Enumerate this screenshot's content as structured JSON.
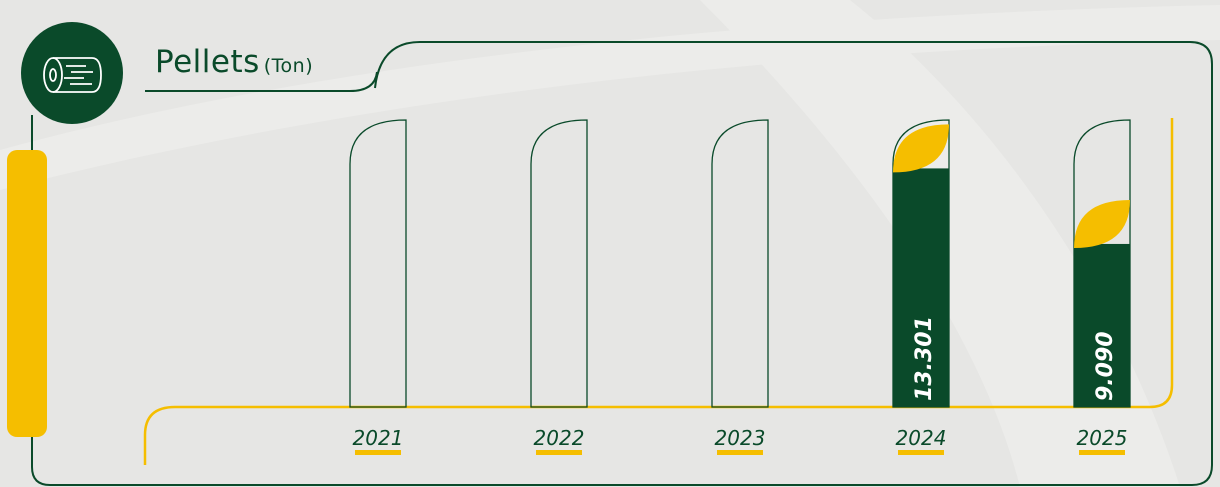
{
  "colors": {
    "green": "#0a4a2a",
    "yellow": "#f5be00",
    "background": "#e6e6e4"
  },
  "header": {
    "icon": "wood-log-icon",
    "title": "Pellets",
    "unit": "(Ton)"
  },
  "chart_data": {
    "type": "bar",
    "title": "Pellets (Ton)",
    "categories": [
      "2021",
      "2022",
      "2023",
      "2024",
      "2025"
    ],
    "values": [
      null,
      null,
      null,
      13.301,
      9.09
    ],
    "value_labels": [
      "",
      "",
      "",
      "13.301",
      "9.090"
    ],
    "ylim": [
      0,
      16
    ],
    "grid": false
  }
}
